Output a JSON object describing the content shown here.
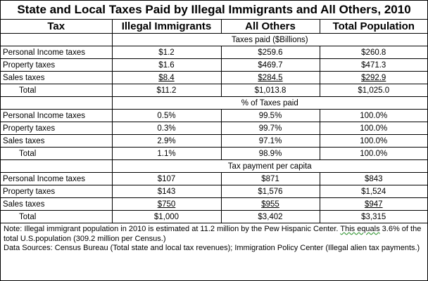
{
  "title": "State and Local Taxes Paid by Illegal Immigrants and All Others, 2010",
  "headers": [
    "Tax",
    "Illegal Immigrants",
    "All Others",
    "Total Population"
  ],
  "sections": [
    {
      "title": "Taxes paid ($Billions)",
      "rows": [
        {
          "label": "Personal Income taxes",
          "values": [
            "$1.2",
            "$259.6",
            "$260.8"
          ]
        },
        {
          "label": "Property taxes",
          "values": [
            "$1.6",
            "$469.7",
            "$471.3"
          ]
        },
        {
          "label": "Sales taxes",
          "values": [
            "$8.4",
            "$284.5",
            "$292.9"
          ]
        },
        {
          "label": "Total",
          "values": [
            "$11.2",
            "$1,013.8",
            "$1,025.0"
          ]
        }
      ]
    },
    {
      "title": "% of Taxes paid",
      "rows": [
        {
          "label": "Personal Income taxes",
          "values": [
            "0.5%",
            "99.5%",
            "100.0%"
          ]
        },
        {
          "label": "Property taxes",
          "values": [
            "0.3%",
            "99.7%",
            "100.0%"
          ]
        },
        {
          "label": "Sales taxes",
          "values": [
            "2.9%",
            "97.1%",
            "100.0%"
          ]
        },
        {
          "label": "Total",
          "values": [
            "1.1%",
            "98.9%",
            "100.0%"
          ]
        }
      ]
    },
    {
      "title": "Tax payment per capita",
      "rows": [
        {
          "label": "Personal Income taxes",
          "values": [
            "$107",
            "$871",
            "$843"
          ]
        },
        {
          "label": "Property taxes",
          "values": [
            "$143",
            "$1,576",
            "$1,524"
          ]
        },
        {
          "label": "Sales taxes",
          "values": [
            "$750",
            "$955",
            "$947"
          ]
        },
        {
          "label": "Total",
          "values": [
            "$1,000",
            "$3,402",
            "$3,315"
          ]
        }
      ]
    }
  ],
  "note": {
    "part1": "Note: Illegal immigrant population in 2010 is estimated at 11.2 million by the Pew Hispanic Center. ",
    "flagged": "This  equals",
    "part2": " 3.6% of the total U.S.population (309.2 million per Census.)",
    "sources": "Data Sources: Census Bureau (Total state and local tax revenues); Immigration Policy Center (Illegal alien tax payments.)"
  }
}
